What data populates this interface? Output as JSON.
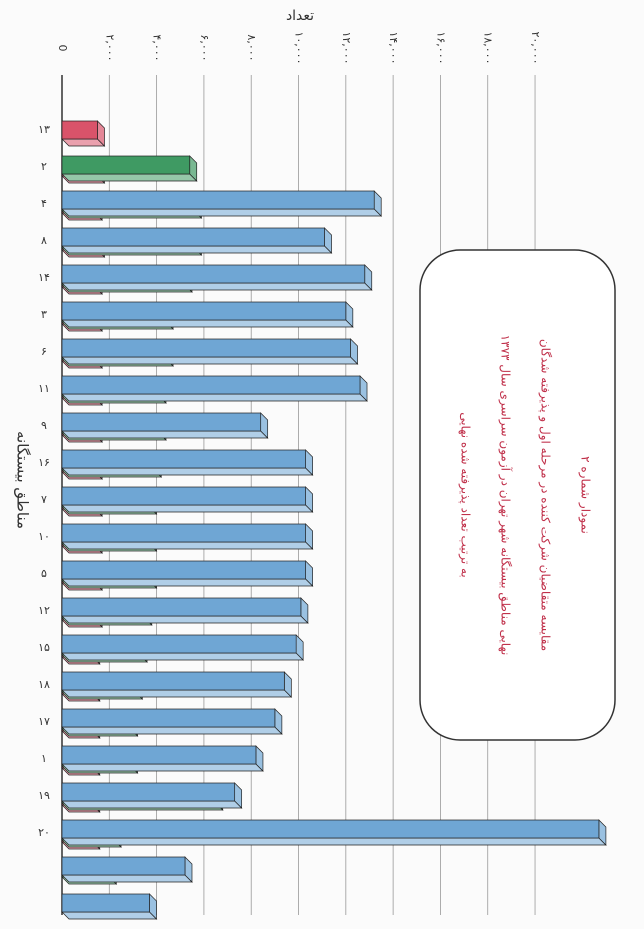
{
  "chart_data": {
    "type": "bar3d-horizontal",
    "title": "نمودار شماره ۲",
    "subtitle_lines": [
      "مقایسه متقاضیان شرکت کننده در مرحله اول و پذیرفته شدگان",
      "نهایی مناطق بیستگانه شهر تهران در آزمون سراسری سال ۱۳۷۳",
      "به ترتیب تعداد پذیرفته شده نهایی"
    ],
    "x_label": "تعداد",
    "y_label": "مناطق بیستگانه",
    "categories": [
      "۱۳",
      "۲",
      "۴",
      "۸",
      "۱۴",
      "۳",
      "۶",
      "۱۱",
      "۹",
      "۱۶",
      "۷",
      "۱۰",
      "۵",
      "۱۲",
      "۱۵",
      "۱۸",
      "۱۷",
      "۱",
      "۱۹",
      "۲۰"
    ],
    "series": [
      {
        "color": "#d9536a",
        "values": [
          1500,
          1500,
          1400,
          1500,
          1400,
          1400,
          1400,
          1400,
          1400,
          1400,
          1400,
          1400,
          1400,
          1400,
          1300,
          1300,
          1300,
          1300,
          1300,
          1300
        ]
      },
      {
        "color": "#3f9a63",
        "values": [
          5400,
          5600,
          5600,
          5200,
          4400,
          4400,
          4100,
          4100,
          3900,
          3700,
          3700,
          3700,
          3500,
          3300,
          3100,
          2900,
          2900,
          6500,
          2200,
          2000
        ]
      },
      {
        "color": "#6fa6d4",
        "values": [
          13200,
          11100,
          12800,
          12000,
          12200,
          12600,
          8400,
          10300,
          10300,
          10300,
          10300,
          10100,
          9900,
          9400,
          9000,
          8200,
          7300,
          22700,
          5200,
          3700
        ]
      }
    ],
    "xlim": [
      0,
      23000
    ],
    "xticks": [
      0,
      {
        "value": 2000,
        "label": "۲,۰۰۰"
      },
      {
        "value": 4000,
        "label": "۴,۰۰۰"
      },
      {
        "value": 6000,
        "label": "۶,۰۰۰"
      },
      {
        "value": 8000,
        "label": "۸,۰۰۰"
      },
      {
        "value": 10000,
        "label": "۱۰,۰۰۰"
      },
      {
        "value": 12000,
        "label": "۱۲,۰۰۰"
      },
      {
        "value": 14000,
        "label": "۱۴,۰۰۰"
      },
      {
        "value": 16000,
        "label": "۱۶,۰۰۰"
      },
      {
        "value": 18000,
        "label": "۱۸,۰۰۰"
      },
      {
        "value": 20000,
        "label": "۲۰,۰۰۰"
      }
    ],
    "grid": true
  }
}
